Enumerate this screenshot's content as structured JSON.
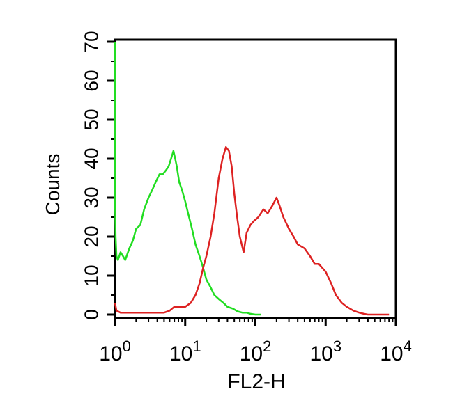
{
  "chart_data": {
    "type": "line",
    "title": "",
    "xlabel": "FL2-H",
    "ylabel": "Counts",
    "x_scale": "log",
    "xlim": [
      1,
      10000
    ],
    "ylim": [
      0,
      70
    ],
    "x_ticks": [
      {
        "base": "10",
        "exp": "0",
        "value": 1
      },
      {
        "base": "10",
        "exp": "1",
        "value": 10
      },
      {
        "base": "10",
        "exp": "2",
        "value": 100
      },
      {
        "base": "10",
        "exp": "3",
        "value": 1000
      },
      {
        "base": "10",
        "exp": "4",
        "value": 10000
      }
    ],
    "y_ticks": [
      "0",
      "10",
      "20",
      "30",
      "40",
      "50",
      "60",
      "70"
    ],
    "y_tick_values": [
      0,
      10,
      20,
      30,
      40,
      50,
      60,
      70
    ],
    "grid": false,
    "legend": "none",
    "series": [
      {
        "color": "#22dd22",
        "x": [
          1.0,
          1.0,
          1.0,
          1.0,
          1.02,
          1.05,
          1.1,
          1.2,
          1.3,
          1.4,
          1.6,
          1.8,
          2.0,
          2.3,
          2.6,
          3.0,
          3.4,
          3.8,
          4.3,
          4.8,
          5.3,
          5.8,
          6.3,
          6.8,
          7.2,
          7.6,
          8.2,
          9.0,
          10.0,
          11.0,
          12.5,
          14.0,
          16.0,
          18.0,
          20.0,
          23.0,
          26.0,
          30.0,
          35.0,
          40.0,
          48.0,
          56.0,
          65.0,
          75.0,
          85.0,
          100.0,
          110.0,
          120.0
        ],
        "y": [
          70,
          55,
          42,
          30,
          20,
          15,
          14,
          16,
          15,
          14,
          17,
          19,
          22,
          23,
          27,
          30,
          32,
          34,
          36,
          36,
          37,
          38,
          40,
          42,
          40,
          38,
          34,
          32,
          29,
          26,
          22,
          18,
          15,
          12,
          9,
          7,
          5,
          4,
          3,
          2,
          1.5,
          0.8,
          0.5,
          0.5,
          0.2,
          0,
          0,
          0
        ]
      },
      {
        "color": "#dd2222",
        "x": [
          1.0,
          1.05,
          1.2,
          1.5,
          2.0,
          3.0,
          4.0,
          5.0,
          6.0,
          7.0,
          8.5,
          10.0,
          12.0,
          14.0,
          16.0,
          18.0,
          20.0,
          23.0,
          26.0,
          30.0,
          34.0,
          38.0,
          42.0,
          46.0,
          50.0,
          55.0,
          60.0,
          68.0,
          75.0,
          85.0,
          95.0,
          110.0,
          130.0,
          150.0,
          175.0,
          200.0,
          220.0,
          250.0,
          300.0,
          350.0,
          400.0,
          500.0,
          600.0,
          700.0,
          800.0,
          1000.0,
          1200.0,
          1400.0,
          1700.0,
          2000.0,
          2500.0,
          3000.0,
          3500.0,
          4000.0,
          5000.0,
          8000.0
        ],
        "y": [
          3,
          1,
          0.5,
          0.5,
          0.5,
          0.5,
          0.5,
          0.5,
          1,
          2,
          2,
          2,
          3,
          5,
          8,
          12,
          15,
          20,
          26,
          35,
          40,
          43,
          42,
          38,
          31,
          25,
          20,
          16,
          21,
          23,
          24,
          25,
          27,
          26,
          28,
          30,
          28,
          25,
          22,
          20,
          18,
          17,
          15,
          13,
          13,
          11,
          8,
          5,
          3,
          2,
          1,
          0.5,
          0.2,
          0,
          0,
          0
        ]
      }
    ]
  }
}
